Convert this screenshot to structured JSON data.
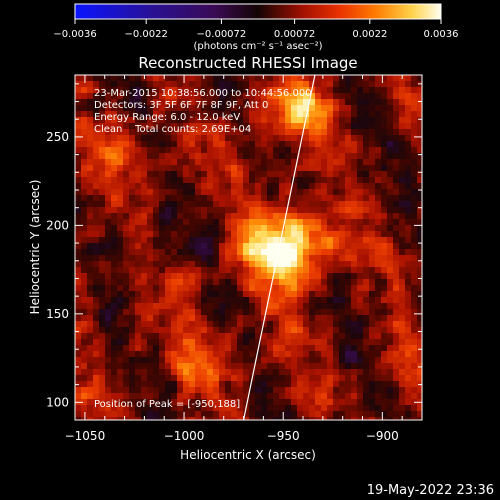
{
  "chart_data": {
    "type": "heatmap",
    "title": "Reconstructed RHESSI Image",
    "xlabel": "Heliocentric X (arcsec)",
    "ylabel": "Heliocentric Y (arcsec)",
    "xlim": [
      -1055,
      -880
    ],
    "ylim": [
      90,
      285
    ],
    "xticks": [
      -1050,
      -1000,
      -950,
      -900
    ],
    "xtick_labels": [
      "−1050",
      "−1000",
      "−950",
      "−900"
    ],
    "yticks": [
      100,
      150,
      200,
      250
    ],
    "ytick_labels": [
      "100",
      "150",
      "200",
      "250"
    ],
    "colorbar": {
      "range": [
        -0.0036,
        0.0036
      ],
      "ticks": [
        -0.0036,
        -0.0022,
        -0.00072,
        0.00072,
        0.0022,
        0.0036
      ],
      "tick_labels": [
        "−0.0036",
        "−0.0022",
        "−0.00072",
        "0.00072",
        "0.0022",
        "0.0036"
      ],
      "unit_label": "(photons cm⁻² s⁻¹ asec⁻²)",
      "colormap": "RHESSI blue-purple-red-yellow-white"
    },
    "annotations": [
      "23-Mar-2015 10:38:56.000 to 10:44:56.000",
      "Detectors: 3F 5F 6F 7F 8F 9F, Att 0",
      "Energy Range: 6.0 - 12.0 keV",
      "Clean    Total counts: 2.69E+04"
    ],
    "peak_label": "Position of Peak = [-950,188]",
    "peak": [
      -950,
      188
    ],
    "limb": [
      [
        -970,
        90
      ],
      [
        -934,
        285
      ]
    ],
    "sources": [
      {
        "x": -950,
        "y": 188,
        "intensity": 0.0036
      },
      {
        "x": -943,
        "y": 265,
        "intensity": 0.0022
      },
      {
        "x": -1032,
        "y": 240,
        "intensity": 0.0013
      },
      {
        "x": -990,
        "y": 120,
        "intensity": 0.0012
      }
    ],
    "grid": false
  },
  "footer": {
    "timestamp": "19-May-2022 23:36"
  }
}
